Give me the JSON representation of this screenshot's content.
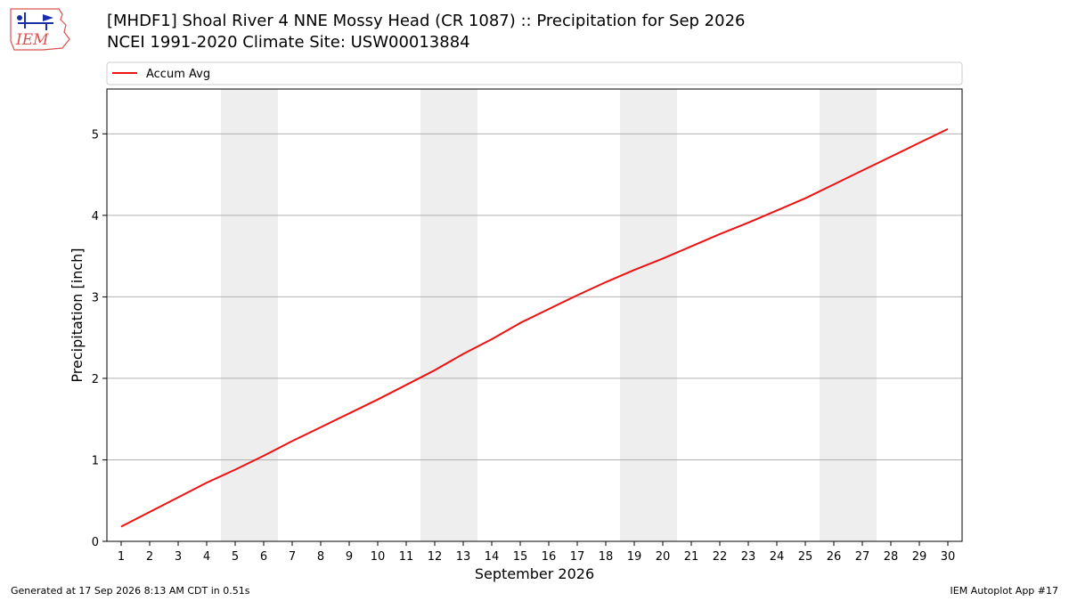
{
  "header": {
    "title_line1": "[MHDF1] Shoal River 4 NNE Mossy Head (CR 1087) :: Precipitation for Sep 2026",
    "title_line2": "NCEI 1991-2020 Climate Site: USW00013884",
    "logo_text": "IEM"
  },
  "footer": {
    "generated": "Generated at 17 Sep 2026 8:13 AM CDT in 0.51s",
    "app": "IEM Autoplot App #17"
  },
  "colors": {
    "line": "#ee1111",
    "weekend": "#eeeeee",
    "grid": "#b0b0b0"
  },
  "chart_data": {
    "type": "line",
    "xlabel": "September 2026",
    "ylabel": "Precipitation [inch]",
    "x": [
      1,
      2,
      3,
      4,
      5,
      6,
      7,
      8,
      9,
      10,
      11,
      12,
      13,
      14,
      15,
      16,
      17,
      18,
      19,
      20,
      21,
      22,
      23,
      24,
      25,
      26,
      27,
      28,
      29,
      30
    ],
    "series": [
      {
        "name": "Accum Avg",
        "values": [
          0.18,
          0.36,
          0.54,
          0.72,
          0.88,
          1.05,
          1.23,
          1.4,
          1.57,
          1.74,
          1.92,
          2.1,
          2.3,
          2.48,
          2.68,
          2.85,
          3.02,
          3.18,
          3.33,
          3.47,
          3.62,
          3.77,
          3.91,
          4.06,
          4.21,
          4.38,
          4.55,
          4.72,
          4.89,
          5.06
        ]
      }
    ],
    "xlim": [
      0.5,
      30.5
    ],
    "ylim": [
      0,
      5.55
    ],
    "yticks": [
      0,
      1,
      2,
      3,
      4,
      5
    ],
    "xticks": [
      1,
      2,
      3,
      4,
      5,
      6,
      7,
      8,
      9,
      10,
      11,
      12,
      13,
      14,
      15,
      16,
      17,
      18,
      19,
      20,
      21,
      22,
      23,
      24,
      25,
      26,
      27,
      28,
      29,
      30
    ],
    "weekend_spans": [
      [
        5,
        6
      ],
      [
        12,
        13
      ],
      [
        19,
        20
      ],
      [
        26,
        27
      ]
    ],
    "grid": "horizontal",
    "legend_position": "top"
  }
}
